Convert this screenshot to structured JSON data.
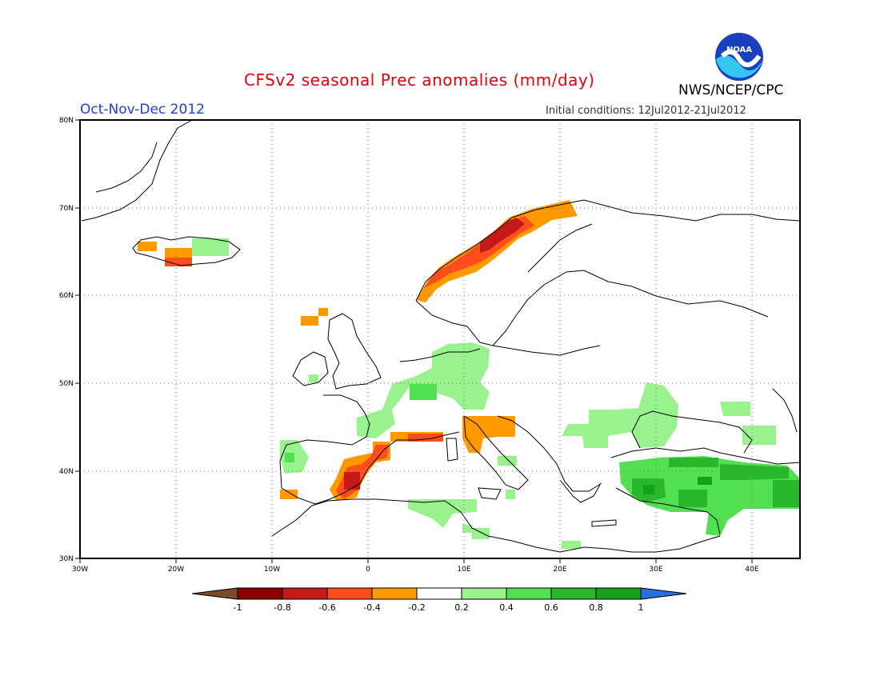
{
  "header": {
    "title": "CFSv2 seasonal Prec anomalies (mm/day)",
    "period": "Oct-Nov-Dec 2012",
    "initial_conditions": "Initial conditions: 12Jul2012-21Jul2012",
    "organization": "NWS/NCEP/CPC",
    "logo_text": "NOAA"
  },
  "map": {
    "projection": "lat-lon",
    "lon_range": [
      -30,
      45
    ],
    "lat_range": [
      30,
      80
    ],
    "grid": true,
    "lat_ticks": [
      {
        "value": 80,
        "label": "80N"
      },
      {
        "value": 70,
        "label": "70N"
      },
      {
        "value": 60,
        "label": "60N"
      },
      {
        "value": 50,
        "label": "50N"
      },
      {
        "value": 40,
        "label": "40N"
      },
      {
        "value": 30,
        "label": "30N"
      }
    ],
    "lon_ticks": [
      {
        "value": -30,
        "label": "30W"
      },
      {
        "value": -20,
        "label": "20W"
      },
      {
        "value": -10,
        "label": "10W"
      },
      {
        "value": 0,
        "label": "0"
      },
      {
        "value": 10,
        "label": "10E"
      },
      {
        "value": 20,
        "label": "20E"
      },
      {
        "value": 30,
        "label": "30E"
      },
      {
        "value": 40,
        "label": "40E"
      }
    ],
    "anomaly_regions": [
      {
        "area": "Norway coast",
        "lon": [
          6,
          22
        ],
        "lat": [
          60,
          71
        ],
        "class": "-0.6 to -0.4"
      },
      {
        "area": "Norway coast core",
        "lon": [
          11,
          17
        ],
        "lat": [
          64,
          69
        ],
        "class": "-0.8 to -0.6"
      },
      {
        "area": "Iceland west",
        "lon": [
          -24,
          -18
        ],
        "lat": [
          63,
          66
        ],
        "class": "-0.4 to -0.2"
      },
      {
        "area": "Iceland east",
        "lon": [
          -18,
          -13
        ],
        "lat": [
          64,
          66
        ],
        "class": "0.2 to 0.4"
      },
      {
        "area": "Scotland",
        "lon": [
          -7,
          -4
        ],
        "lat": [
          58,
          59
        ],
        "class": "-0.4 to -0.2"
      },
      {
        "area": "Eastern Spain",
        "lon": [
          -3,
          2
        ],
        "lat": [
          37,
          43
        ],
        "class": "-0.6 to -0.4"
      },
      {
        "area": "Gulf of Lion",
        "lon": [
          1,
          8
        ],
        "lat": [
          43,
          45
        ],
        "class": "-0.6 to -0.4"
      },
      {
        "area": "Northern Italy / Adriatic",
        "lon": [
          10,
          15
        ],
        "lat": [
          42,
          46
        ],
        "class": "-0.4 to -0.2"
      },
      {
        "area": "Central Europe",
        "lon": [
          0,
          15
        ],
        "lat": [
          44,
          54
        ],
        "class": "0.2 to 0.4"
      },
      {
        "area": "Balkans / Black Sea",
        "lon": [
          20,
          35
        ],
        "lat": [
          41,
          49
        ],
        "class": "0.2 to 0.4"
      },
      {
        "area": "Anatolia",
        "lon": [
          27,
          45
        ],
        "lat": [
          36,
          41
        ],
        "class": "0.4 to 0.8"
      },
      {
        "area": "North Africa",
        "lon": [
          5,
          12
        ],
        "lat": [
          35,
          37
        ],
        "class": "0.2 to 0.4"
      }
    ]
  },
  "colorbar": {
    "labels": [
      "-1",
      "-0.8",
      "-0.6",
      "-0.4",
      "-0.2",
      "0.2",
      "0.4",
      "0.6",
      "0.8",
      "1"
    ],
    "colors": [
      "#8b0000",
      "#c41a1a",
      "#ff4d1c",
      "#ff9900",
      "#ffffff",
      "#9af28e",
      "#52e052",
      "#29b82c",
      "#15a11a"
    ],
    "under_color": "#7a4a2a",
    "over_color": "#2a6fe0"
  }
}
